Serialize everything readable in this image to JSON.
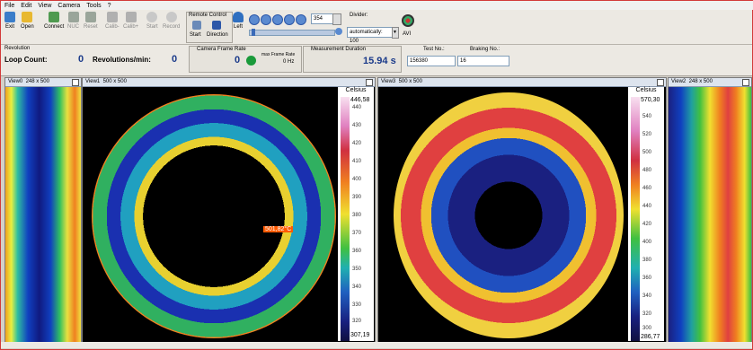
{
  "menu": [
    "File",
    "Edit",
    "View",
    "Camera",
    "Tools",
    "?"
  ],
  "toolbar": {
    "buttons": [
      {
        "label": "Exit",
        "icon": "exit-icon"
      },
      {
        "label": "Open",
        "icon": "open-folder-icon"
      },
      {
        "label": "Connect",
        "icon": "camera-connect-icon"
      },
      {
        "label": "NUC",
        "icon": "nuc-icon"
      },
      {
        "label": "Reset",
        "icon": "reset-icon"
      },
      {
        "label": "Calib-",
        "icon": "arrow-down-icon"
      },
      {
        "label": "Calib+",
        "icon": "arrow-up-icon"
      },
      {
        "label": "Start",
        "icon": "record-start-icon"
      },
      {
        "label": "Record",
        "icon": "record-icon"
      }
    ],
    "remote_control_title": "Remote Control",
    "start_label": "Start",
    "direction_label": "Direction",
    "left_label": "Left",
    "frame_value": "354",
    "divider_title": "Divider:",
    "divider_value": "automatically: 100",
    "avi_label": "AVI"
  },
  "info": {
    "revolution_title": "Revolution",
    "loop_count_label": "Loop Count:",
    "loop_count_value": "0",
    "revs_label": "Revolutions/min:",
    "revs_value": "0",
    "frame_rate_title": "Camera Frame Rate",
    "frame_rate_value": "0",
    "max_frame_rate_label": "max Frame Rate",
    "max_frame_rate_value": "0 Hz",
    "measurement_duration_title": "Measurement Duration",
    "measurement_duration_value": "15.94 s",
    "test_no_label": "Test No.:",
    "test_no_value": "156380",
    "braking_no_label": "Braking No.:",
    "braking_no_value": "16"
  },
  "views": [
    {
      "name": "View0",
      "size": "248 x 500"
    },
    {
      "name": "View1",
      "size": "500 x 500"
    },
    {
      "name": "View3",
      "size": "500 x 500"
    },
    {
      "name": "View2",
      "size": "248 x 500"
    }
  ],
  "scale1": {
    "unit": "Celsius",
    "max": "446,58",
    "min": "307,19",
    "ticks": [
      "440",
      "430",
      "420",
      "410",
      "400",
      "390",
      "380",
      "370",
      "360",
      "350",
      "340",
      "330",
      "320"
    ]
  },
  "scale3": {
    "unit": "Celsius",
    "max": "570,30",
    "min": "286,77",
    "ticks": [
      "540",
      "520",
      "500",
      "480",
      "460",
      "440",
      "420",
      "400",
      "380",
      "360",
      "340",
      "320",
      "300"
    ]
  },
  "hotspot_label": "501,82°C",
  "colors": {
    "accent": "#1a3a8a",
    "hot": "#ff5a00",
    "border": "#d23a3a"
  }
}
